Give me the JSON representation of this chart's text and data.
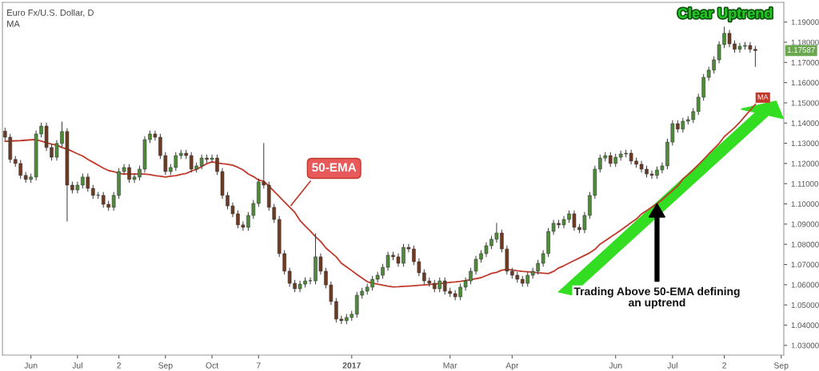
{
  "chart_data": {
    "type": "candlestick",
    "title": "Euro Fx/U.S. Dollar, D",
    "subtitle": "MA",
    "categories": [
      null,
      null,
      null,
      null,
      null,
      "Jun",
      null,
      null,
      null,
      null,
      null,
      null,
      null,
      null,
      "Jul",
      null,
      null,
      null,
      null,
      null,
      null,
      null,
      "2",
      null,
      null,
      null,
      null,
      null,
      null,
      null,
      null,
      "Sep",
      null,
      null,
      null,
      null,
      null,
      null,
      null,
      null,
      "Oct",
      null,
      null,
      null,
      null,
      null,
      null,
      null,
      null,
      "7",
      null,
      null,
      null,
      null,
      null,
      null,
      null,
      null,
      null,
      null,
      null,
      null,
      null,
      null,
      null,
      null,
      null,
      "2017",
      null,
      null,
      null,
      null,
      null,
      null,
      null,
      null,
      null,
      null,
      null,
      null,
      null,
      null,
      null,
      null,
      null,
      null,
      "Mar",
      null,
      null,
      null,
      null,
      null,
      null,
      null,
      null,
      null,
      null,
      null,
      "Apr",
      null,
      null,
      null,
      null,
      null,
      null,
      null,
      null,
      null,
      null,
      null,
      null,
      null,
      null,
      null,
      null,
      null,
      null,
      null,
      "Jun",
      null,
      null,
      null,
      null,
      null,
      null,
      null,
      null,
      null,
      null,
      "Jul",
      null,
      null,
      null,
      null,
      null,
      null,
      null,
      null,
      null,
      "2",
      null,
      null,
      null,
      null,
      null,
      null,
      null,
      null,
      null,
      null,
      "Sep"
    ],
    "ohlc": [
      [
        1.136,
        1.1375,
        1.1315,
        1.133
      ],
      [
        1.133,
        1.1345,
        1.1205,
        1.122
      ],
      [
        1.122,
        1.1235,
        1.1185,
        1.12
      ],
      [
        1.12,
        1.1215,
        1.1126,
        1.1141
      ],
      [
        1.1141,
        1.1156,
        1.1106,
        1.1121
      ],
      [
        1.1121,
        1.1148,
        1.1106,
        1.1133
      ],
      [
        1.1133,
        1.1361,
        1.1118,
        1.1346
      ],
      [
        1.1346,
        1.14,
        1.1331,
        1.1385
      ],
      [
        1.1385,
        1.14,
        1.1264,
        1.1279
      ],
      [
        1.1279,
        1.1294,
        1.1216,
        1.1231
      ],
      [
        1.1231,
        1.1314,
        1.1216,
        1.1299
      ],
      [
        1.1299,
        1.1405,
        1.1284,
        1.1358
      ],
      [
        1.1358,
        1.1373,
        1.0915,
        1.1093
      ],
      [
        1.1093,
        1.1108,
        1.1054,
        1.1069
      ],
      [
        1.1069,
        1.1108,
        1.1054,
        1.1093
      ],
      [
        1.1093,
        1.1148,
        1.1078,
        1.1133
      ],
      [
        1.1133,
        1.1148,
        1.1062,
        1.1077
      ],
      [
        1.1077,
        1.1092,
        1.1027,
        1.1042
      ],
      [
        1.1042,
        1.1057,
        1.1027,
        1.1042
      ],
      [
        1.1042,
        1.1057,
        1.0983,
        1.0998
      ],
      [
        1.0998,
        1.1013,
        1.0968,
        1.0983
      ],
      [
        1.0983,
        1.1057,
        1.0968,
        1.1042
      ],
      [
        1.1042,
        1.1175,
        1.1027,
        1.116
      ],
      [
        1.116,
        1.1195,
        1.1145,
        1.118
      ],
      [
        1.118,
        1.1195,
        1.1106,
        1.1121
      ],
      [
        1.1121,
        1.1148,
        1.1106,
        1.1133
      ],
      [
        1.1133,
        1.1187,
        1.1118,
        1.1172
      ],
      [
        1.1172,
        1.1333,
        1.1157,
        1.1318
      ],
      [
        1.1318,
        1.1361,
        1.1303,
        1.1346
      ],
      [
        1.1346,
        1.1361,
        1.1315,
        1.133
      ],
      [
        1.133,
        1.1345,
        1.1224,
        1.1239
      ],
      [
        1.1239,
        1.1254,
        1.1145,
        1.116
      ],
      [
        1.116,
        1.1195,
        1.1145,
        1.118
      ],
      [
        1.118,
        1.1254,
        1.1165,
        1.1239
      ],
      [
        1.1239,
        1.1266,
        1.1224,
        1.1251
      ],
      [
        1.1251,
        1.1266,
        1.1224,
        1.1239
      ],
      [
        1.1239,
        1.1254,
        1.1157,
        1.1172
      ],
      [
        1.1172,
        1.1203,
        1.1157,
        1.1188
      ],
      [
        1.1188,
        1.1242,
        1.1173,
        1.1227
      ],
      [
        1.1227,
        1.1242,
        1.1205,
        1.122
      ],
      [
        1.122,
        1.1242,
        1.1205,
        1.1227
      ],
      [
        1.1227,
        1.1242,
        1.1145,
        1.116
      ],
      [
        1.116,
        1.1175,
        1.1027,
        1.1042
      ],
      [
        1.1042,
        1.1057,
        1.0975,
        1.099
      ],
      [
        1.099,
        1.1005,
        1.0936,
        1.0951
      ],
      [
        1.0951,
        1.0966,
        1.0881,
        1.0896
      ],
      [
        1.0896,
        1.0911,
        1.0869,
        1.0884
      ],
      [
        1.0884,
        1.0958,
        1.0869,
        1.0943
      ],
      [
        1.0943,
        1.1017,
        1.0928,
        1.1002
      ],
      [
        1.1002,
        1.1124,
        1.0987,
        1.1109
      ],
      [
        1.1109,
        1.1299,
        1.1078,
        1.1093
      ],
      [
        1.1093,
        1.1108,
        1.0968,
        1.0983
      ],
      [
        1.0983,
        1.0998,
        1.0908,
        1.0923
      ],
      [
        1.0923,
        1.0938,
        1.0739,
        1.0754
      ],
      [
        1.0754,
        1.0769,
        1.0652,
        1.0667
      ],
      [
        1.0667,
        1.0682,
        1.0592,
        1.0607
      ],
      [
        1.0607,
        1.0622,
        1.0565,
        1.058
      ],
      [
        1.058,
        1.0618,
        1.0565,
        1.0603
      ],
      [
        1.0603,
        1.0634,
        1.0588,
        1.0619
      ],
      [
        1.0619,
        1.0634,
        1.0604,
        1.0619
      ],
      [
        1.0619,
        1.0852,
        1.0604,
        1.0738
      ],
      [
        1.0738,
        1.0753,
        1.0652,
        1.0667
      ],
      [
        1.0667,
        1.0682,
        1.0584,
        1.0599
      ],
      [
        1.0599,
        1.0614,
        1.0502,
        1.0517
      ],
      [
        1.0517,
        1.0532,
        1.0415,
        1.043
      ],
      [
        1.043,
        1.0445,
        1.0407,
        1.0422
      ],
      [
        1.0422,
        1.0453,
        1.0407,
        1.0438
      ],
      [
        1.0438,
        1.0469,
        1.0423,
        1.0454
      ],
      [
        1.0454,
        1.0563,
        1.0439,
        1.0548
      ],
      [
        1.0548,
        1.0583,
        1.0533,
        1.0568
      ],
      [
        1.0568,
        1.0603,
        1.0553,
        1.0588
      ],
      [
        1.0588,
        1.0642,
        1.0573,
        1.0627
      ],
      [
        1.0627,
        1.0662,
        1.0612,
        1.0647
      ],
      [
        1.0647,
        1.0701,
        1.0632,
        1.0686
      ],
      [
        1.0686,
        1.0761,
        1.0671,
        1.0746
      ],
      [
        1.0746,
        1.0761,
        1.0723,
        1.0738
      ],
      [
        1.0738,
        1.0753,
        1.0691,
        1.0706
      ],
      [
        1.0706,
        1.08,
        1.0691,
        1.0785
      ],
      [
        1.0785,
        1.08,
        1.0762,
        1.0777
      ],
      [
        1.0777,
        1.0792,
        1.0699,
        1.0714
      ],
      [
        1.0714,
        1.0729,
        1.0644,
        1.0659
      ],
      [
        1.0659,
        1.0674,
        1.0604,
        1.0619
      ],
      [
        1.0619,
        1.0634,
        1.0592,
        1.0607
      ],
      [
        1.0607,
        1.0622,
        1.0565,
        1.058
      ],
      [
        1.058,
        1.0634,
        1.0565,
        1.0619
      ],
      [
        1.0619,
        1.0634,
        1.0553,
        1.0568
      ],
      [
        1.0568,
        1.0583,
        1.0541,
        1.0556
      ],
      [
        1.0556,
        1.0571,
        1.0525,
        1.054
      ],
      [
        1.054,
        1.0603,
        1.0525,
        1.0588
      ],
      [
        1.0588,
        1.0634,
        1.0573,
        1.0619
      ],
      [
        1.0619,
        1.0682,
        1.0604,
        1.0667
      ],
      [
        1.0667,
        1.0741,
        1.0652,
        1.0726
      ],
      [
        1.0726,
        1.0769,
        1.0711,
        1.0754
      ],
      [
        1.0754,
        1.0808,
        1.0739,
        1.0793
      ],
      [
        1.0793,
        1.084,
        1.0778,
        1.0825
      ],
      [
        1.0825,
        1.0904,
        1.081,
        1.0856
      ],
      [
        1.0856,
        1.0871,
        1.0762,
        1.0777
      ],
      [
        1.0777,
        1.0792,
        1.0652,
        1.0667
      ],
      [
        1.0667,
        1.0682,
        1.0632,
        1.0647
      ],
      [
        1.0647,
        1.0662,
        1.0612,
        1.0627
      ],
      [
        1.0627,
        1.0642,
        1.0592,
        1.0607
      ],
      [
        1.0607,
        1.0662,
        1.0592,
        1.0647
      ],
      [
        1.0647,
        1.0682,
        1.0632,
        1.0667
      ],
      [
        1.0667,
        1.0721,
        1.0652,
        1.0706
      ],
      [
        1.0706,
        1.0769,
        1.0691,
        1.0754
      ],
      [
        1.0754,
        1.0879,
        1.0739,
        1.0864
      ],
      [
        1.0864,
        1.0919,
        1.0849,
        1.0904
      ],
      [
        1.0904,
        1.0919,
        1.0881,
        1.0896
      ],
      [
        1.0896,
        1.0938,
        1.0881,
        1.0923
      ],
      [
        1.0923,
        1.0966,
        1.0908,
        1.0951
      ],
      [
        1.0951,
        1.0966,
        1.0869,
        1.0884
      ],
      [
        1.0884,
        1.0899,
        1.0857,
        1.0872
      ],
      [
        1.0872,
        1.0958,
        1.0857,
        1.0943
      ],
      [
        1.0943,
        1.1057,
        1.0928,
        1.1042
      ],
      [
        1.1042,
        1.1187,
        1.1027,
        1.1172
      ],
      [
        1.1172,
        1.1242,
        1.1157,
        1.1227
      ],
      [
        1.1227,
        1.1254,
        1.1212,
        1.1239
      ],
      [
        1.1239,
        1.1254,
        1.1185,
        1.12
      ],
      [
        1.12,
        1.1246,
        1.1185,
        1.1231
      ],
      [
        1.1231,
        1.1262,
        1.1216,
        1.1247
      ],
      [
        1.1247,
        1.1266,
        1.1232,
        1.1251
      ],
      [
        1.1251,
        1.1266,
        1.1197,
        1.1212
      ],
      [
        1.1212,
        1.1227,
        1.1181,
        1.1196
      ],
      [
        1.1196,
        1.1211,
        1.1157,
        1.1172
      ],
      [
        1.1172,
        1.1187,
        1.1133,
        1.1148
      ],
      [
        1.1148,
        1.1163,
        1.1126,
        1.1141
      ],
      [
        1.1141,
        1.1183,
        1.1126,
        1.1168
      ],
      [
        1.1168,
        1.1203,
        1.1153,
        1.1188
      ],
      [
        1.1188,
        1.1321,
        1.1173,
        1.1306
      ],
      [
        1.1306,
        1.1412,
        1.1291,
        1.1397
      ],
      [
        1.1397,
        1.1412,
        1.1355,
        1.137
      ],
      [
        1.137,
        1.1424,
        1.1355,
        1.1409
      ],
      [
        1.1409,
        1.1432,
        1.1394,
        1.1417
      ],
      [
        1.1417,
        1.1472,
        1.1402,
        1.1457
      ],
      [
        1.1457,
        1.1543,
        1.1442,
        1.1528
      ],
      [
        1.1528,
        1.1641,
        1.1513,
        1.1626
      ],
      [
        1.1626,
        1.1677,
        1.1611,
        1.1662
      ],
      [
        1.1662,
        1.1728,
        1.1647,
        1.1713
      ],
      [
        1.1713,
        1.1803,
        1.1698,
        1.1788
      ],
      [
        1.1788,
        1.1875,
        1.1773,
        1.1844
      ],
      [
        1.1844,
        1.1859,
        1.1777,
        1.1792
      ],
      [
        1.1792,
        1.1807,
        1.175,
        1.1765
      ],
      [
        1.1765,
        1.1795,
        1.175,
        1.178
      ],
      [
        1.178,
        1.1799,
        1.1765,
        1.1784
      ],
      [
        1.1784,
        1.1799,
        1.175,
        1.1765
      ],
      [
        1.1765,
        1.178,
        1.168,
        1.17587
      ],
      null,
      null,
      null,
      null,
      null
    ],
    "series": [
      {
        "type": "line",
        "name": "MA",
        "color": "#c0392b",
        "values": [
          1.131,
          1.1311,
          1.1312,
          1.1313,
          1.1315,
          1.1317,
          1.1318,
          1.1311,
          1.1303,
          1.1296,
          1.1291,
          1.1279,
          1.1271,
          1.126,
          1.1248,
          1.1237,
          1.122,
          1.1206,
          1.1192,
          1.1177,
          1.1165,
          1.116,
          1.1151,
          1.1148,
          1.1148,
          1.1148,
          1.1148,
          1.1148,
          1.1145,
          1.114,
          1.1137,
          1.1133,
          1.1137,
          1.114,
          1.1146,
          1.1151,
          1.1162,
          1.1171,
          1.1185,
          1.1199,
          1.1208,
          1.1203,
          1.1199,
          1.1196,
          1.1191,
          1.1181,
          1.1168,
          1.1148,
          1.1135,
          1.1118,
          1.1112,
          1.1088,
          1.1062,
          1.1036,
          1.101,
          1.0984,
          1.0958,
          1.0918,
          1.0891,
          1.0865,
          1.0838,
          1.0814,
          1.0782,
          1.076,
          1.0738,
          1.0706,
          1.0688,
          1.067,
          1.0651,
          1.0633,
          1.0615,
          1.0608,
          1.0603,
          1.0598,
          1.0593,
          1.0589,
          1.059,
          1.0592,
          1.0593,
          1.0595,
          1.0597,
          1.0599,
          1.0601,
          1.0604,
          1.0606,
          1.0608,
          1.0612,
          1.0614,
          1.0617,
          1.0621,
          1.0626,
          1.063,
          1.0635,
          1.0645,
          1.0656,
          1.0661,
          1.0672,
          1.0676,
          1.0673,
          1.0669,
          1.0666,
          1.0664,
          1.0662,
          1.0659,
          1.0657,
          1.0655,
          1.0666,
          1.0683,
          1.0694,
          1.0707,
          1.072,
          1.0732,
          1.0745,
          1.0758,
          1.0775,
          1.0801,
          1.0818,
          1.0835,
          1.0852,
          1.087,
          1.0889,
          1.0907,
          1.0925,
          1.095,
          1.0967,
          1.0984,
          1.1001,
          1.1021,
          1.1044,
          1.1066,
          1.1089,
          1.1123,
          1.1145,
          1.1168,
          1.1194,
          1.122,
          1.1247,
          1.1273,
          1.1299,
          1.1333,
          1.1355,
          1.1378,
          1.1404,
          1.1434,
          1.1463,
          1.1493,
          null,
          null,
          null,
          null,
          null
        ]
      }
    ],
    "ylim": [
      1.0252,
      1.1997
    ],
    "yticks": [
      {
        "value": 1.03,
        "label": "1.03000"
      },
      {
        "value": 1.04,
        "label": "1.04000"
      },
      {
        "value": 1.05,
        "label": "1.05000"
      },
      {
        "value": 1.06,
        "label": "1.06000"
      },
      {
        "value": 1.07,
        "label": "1.07000"
      },
      {
        "value": 1.08,
        "label": "1.08000"
      },
      {
        "value": 1.09,
        "label": "1.09000"
      },
      {
        "value": 1.1,
        "label": "1.10000"
      },
      {
        "value": 1.11,
        "label": "1.11000"
      },
      {
        "value": 1.12,
        "label": "1.12000"
      },
      {
        "value": 1.13,
        "label": "1.13000"
      },
      {
        "value": 1.14,
        "label": "1.14000"
      },
      {
        "value": 1.15,
        "label": "1.15000"
      },
      {
        "value": 1.16,
        "label": "1.16000"
      },
      {
        "value": 1.17,
        "label": "1.17000"
      },
      {
        "value": 1.18,
        "label": "1.18000"
      },
      {
        "value": 1.19,
        "label": "1.19000"
      }
    ],
    "annotations": [
      "50-EMA",
      "Trading Above 50-EMA defining\nan uptrend",
      "Clear Uptrend",
      "1.17587"
    ]
  }
}
